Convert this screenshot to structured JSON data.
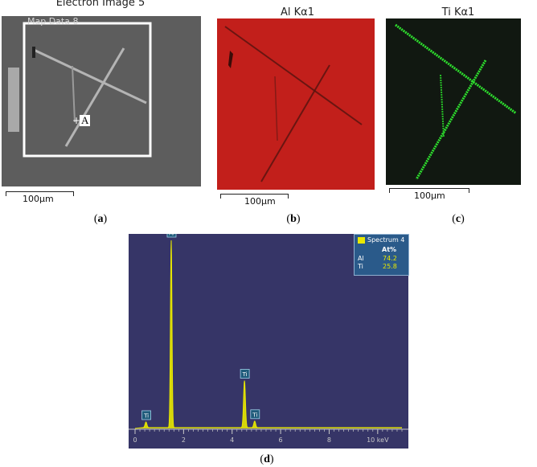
{
  "panels": {
    "a": {
      "title": "Electron Image 5",
      "overlay_label": "Map Data 8",
      "point_label": "A",
      "scale_label": "100µm",
      "caption_letter": "a"
    },
    "b": {
      "title": "Al Kα1",
      "scale_label": "100µm",
      "caption_letter": "b",
      "map_color": "#c8201c"
    },
    "c": {
      "title": "Ti Kα1",
      "scale_label": "100µm",
      "caption_letter": "c",
      "map_color": "#28c828"
    },
    "d": {
      "caption_letter": "d"
    }
  },
  "chart_data": {
    "type": "line",
    "title": "",
    "xlabel": "keV",
    "ylabel": "",
    "xlim": [
      0,
      11
    ],
    "xticks": [
      0,
      2,
      4,
      6,
      8,
      10
    ],
    "xtick_labels": [
      "0",
      "2",
      "4",
      "6",
      "8",
      "10 keV"
    ],
    "legend": {
      "placement": "top-right",
      "series_name": "Spectrum 4",
      "header": [
        "",
        "At%"
      ],
      "rows": [
        [
          "Al",
          "74.2"
        ],
        [
          "Ti",
          "25.8"
        ]
      ]
    },
    "peaks": [
      {
        "element": "Ti",
        "energy": 0.45,
        "relative_intensity": 0.03
      },
      {
        "element": "Al",
        "energy": 1.49,
        "relative_intensity": 1.0
      },
      {
        "element": "Ti",
        "energy": 4.51,
        "relative_intensity": 0.25
      },
      {
        "element": "Ti",
        "energy": 4.93,
        "relative_intensity": 0.035
      }
    ],
    "colors": {
      "background": "#363567",
      "spectrum": "#e8e800",
      "axis": "#c8c8c8"
    }
  }
}
